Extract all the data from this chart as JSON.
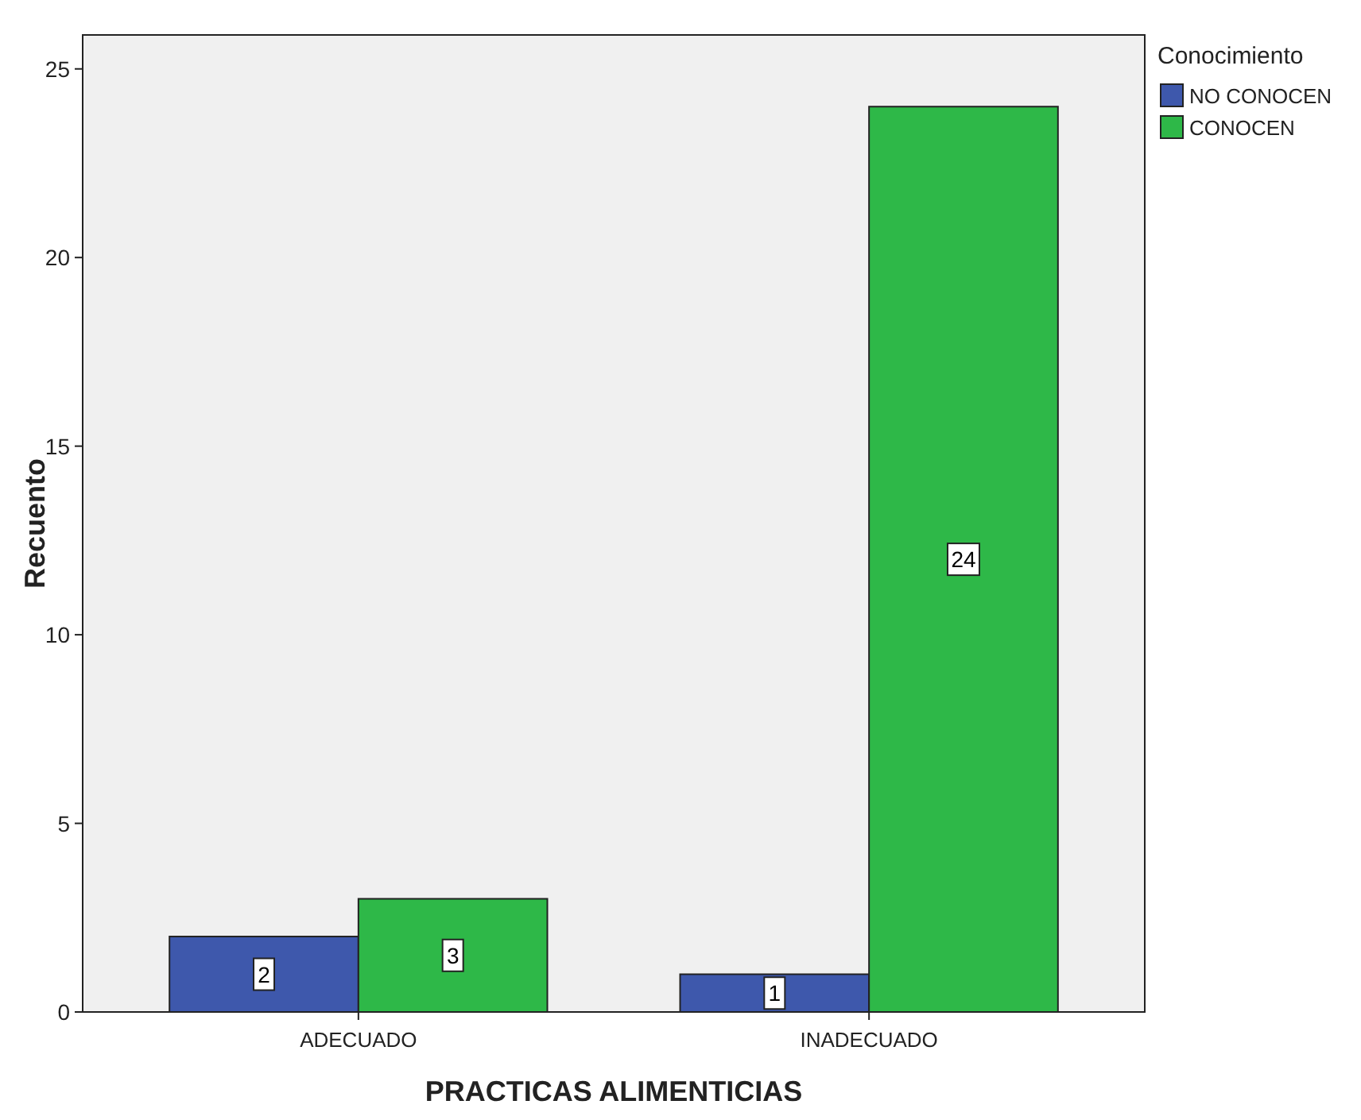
{
  "chart_data": {
    "type": "bar",
    "xlabel": "PRACTICAS ALIMENTICIAS",
    "ylabel": "Recuento",
    "legend_title": "Conocimiento",
    "categories": [
      "ADECUADO",
      "INADECUADO"
    ],
    "series": [
      {
        "name": "NO CONOCEN",
        "color": "#3e58ac",
        "values": [
          2,
          1
        ]
      },
      {
        "name": "CONOCEN",
        "color": "#2eb848",
        "values": [
          3,
          24
        ]
      }
    ],
    "ylim": [
      0,
      25.9
    ],
    "yticks": [
      0,
      5,
      10,
      15,
      20,
      25
    ],
    "data_labels": true,
    "legend": "top right",
    "grid": false
  }
}
